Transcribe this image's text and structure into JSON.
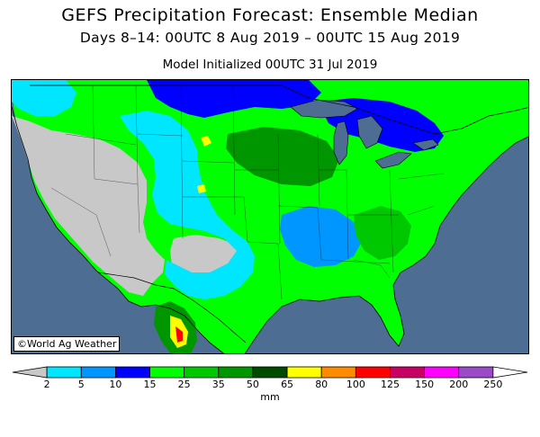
{
  "title": "GEFS Precipitation Forecast: Ensemble Median",
  "subtitle": "Days 8–14: 00UTC 8 Aug 2019 – 00UTC 15 Aug 2019",
  "init": "Model Initialized 00UTC 31 Jul 2019",
  "credit": "©World Ag Weather",
  "colorbar": {
    "unit": "mm",
    "ticks": [
      "2",
      "5",
      "10",
      "15",
      "25",
      "35",
      "50",
      "65",
      "80",
      "100",
      "125",
      "150",
      "200",
      "250"
    ],
    "colors": [
      "#c8c8c8",
      "#00e6ff",
      "#0096ff",
      "#0000ff",
      "#00ff00",
      "#00c800",
      "#009600",
      "#004b00",
      "#ffff00",
      "#ff8c00",
      "#ff0000",
      "#c80064",
      "#ff00ff",
      "#9b4bc8",
      "#ffffff"
    ]
  },
  "colors": {
    "ocean": "#4d6d93",
    "lakes": "#4d6d93",
    "dry": "#c8c8c8"
  }
}
